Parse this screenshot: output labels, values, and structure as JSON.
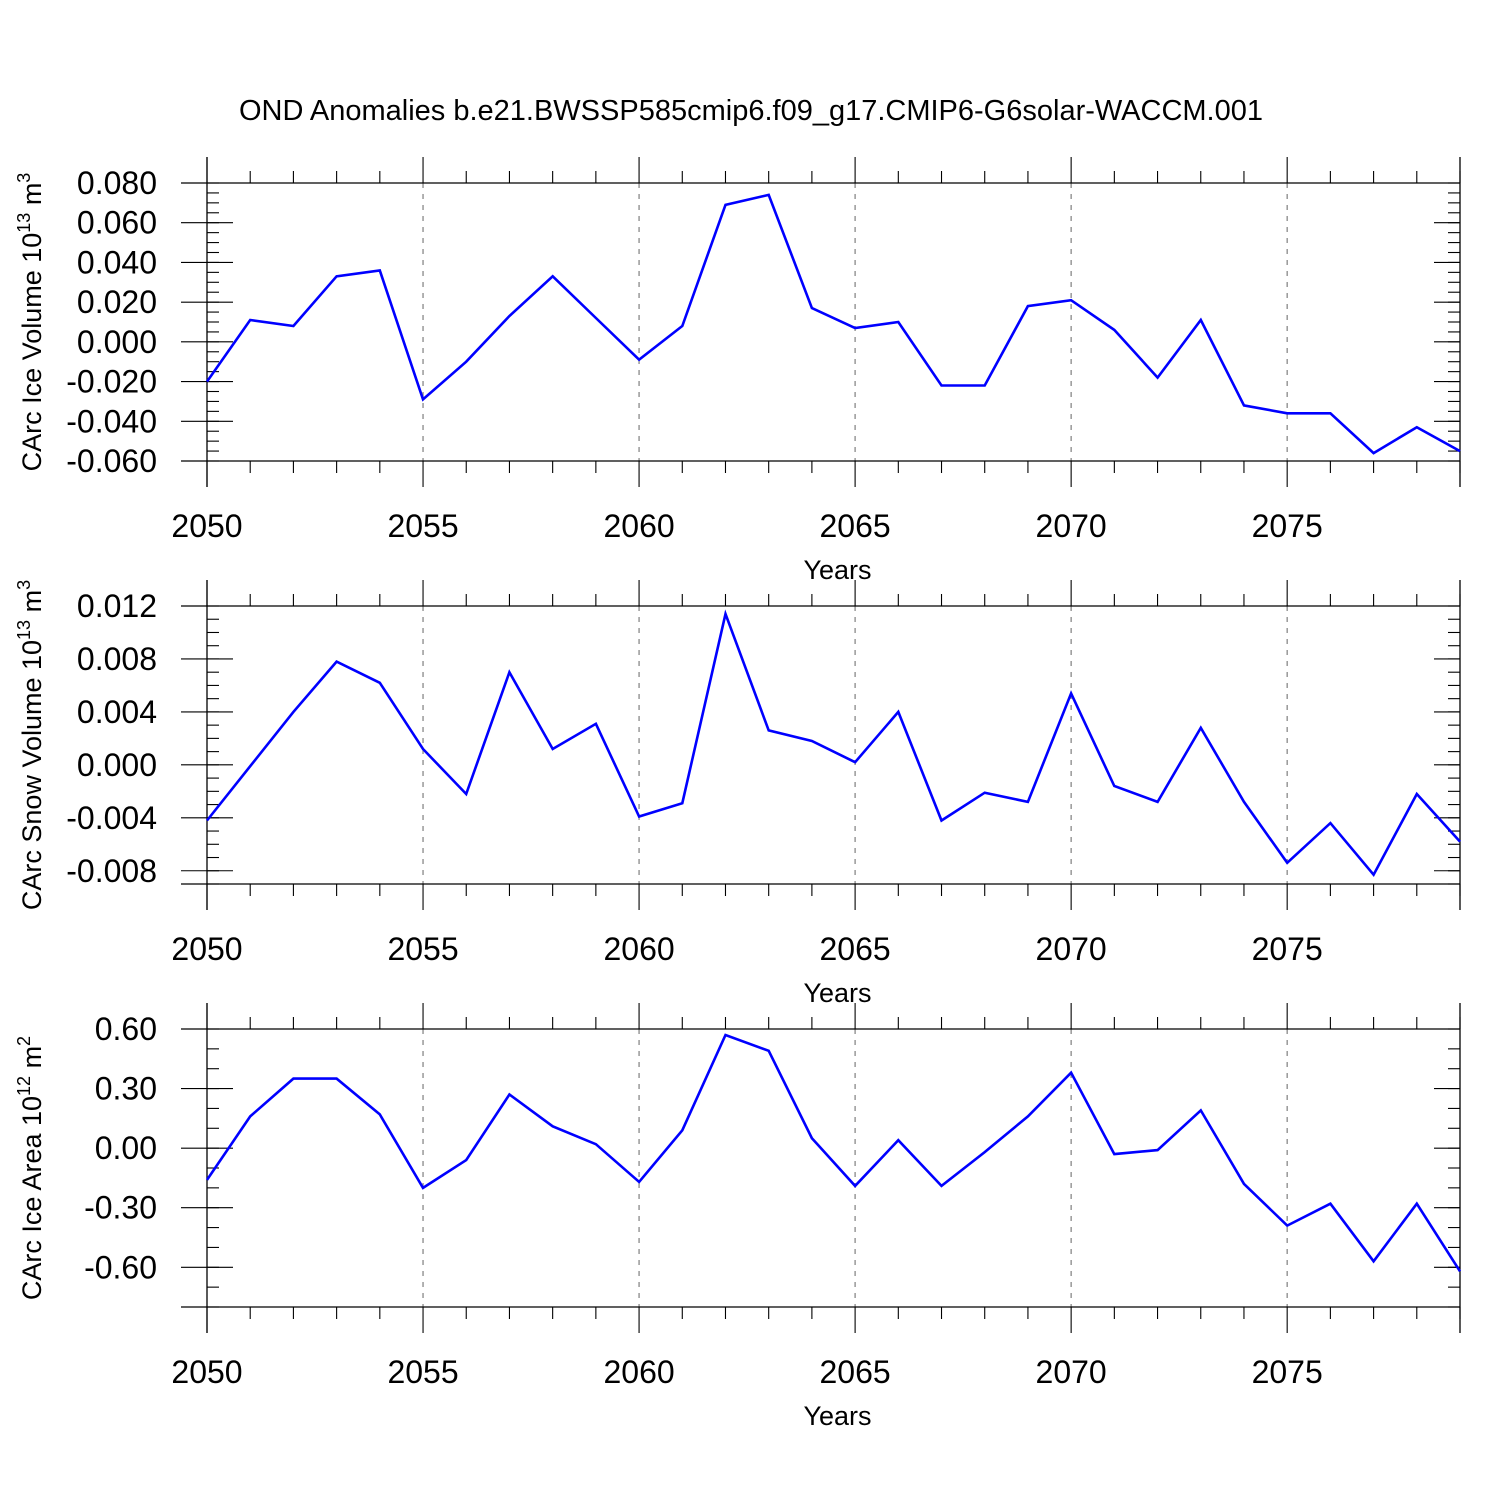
{
  "title": "OND Anomalies b.e21.BWSSP585cmip6.f09_g17.CMIP6-G6solar-WACCM.001",
  "chart_data": [
    {
      "type": "line",
      "ylabel_main": "CArc Ice Volume 10",
      "ylabel_exp": "13",
      "ylabel_unit": " m",
      "ylabel_unit_exp": "3",
      "xlabel": "Years",
      "xlim": [
        2050,
        2079
      ],
      "ylim": [
        -0.06,
        0.08
      ],
      "yticks": [
        0.08,
        0.06,
        0.04,
        0.02,
        0.0,
        -0.02,
        -0.04,
        -0.06
      ],
      "yticklabels": [
        "0.080",
        "0.060",
        "0.040",
        "0.020",
        "0.000",
        "-0.020",
        "-0.040",
        "-0.060"
      ],
      "ytick_minor_step": 0.005,
      "xticks": [
        2050,
        2055,
        2060,
        2065,
        2070,
        2075
      ],
      "xticklabels": [
        "2050",
        "2055",
        "2060",
        "2065",
        "2070",
        "2075"
      ],
      "x": [
        2050,
        2051,
        2052,
        2053,
        2054,
        2055,
        2056,
        2057,
        2058,
        2059,
        2060,
        2061,
        2062,
        2063,
        2064,
        2065,
        2066,
        2067,
        2068,
        2069,
        2070,
        2071,
        2072,
        2073,
        2074,
        2075,
        2076,
        2077,
        2078,
        2079
      ],
      "values": [
        -0.02,
        0.011,
        0.008,
        0.033,
        0.036,
        -0.029,
        -0.01,
        0.013,
        0.033,
        0.012,
        -0.009,
        0.008,
        0.069,
        0.074,
        0.017,
        0.007,
        0.01,
        -0.022,
        -0.022,
        0.018,
        0.021,
        0.006,
        -0.018,
        0.011,
        -0.032,
        -0.036,
        -0.036,
        -0.056,
        -0.043,
        -0.055
      ],
      "line_color": "#0000ff"
    },
    {
      "type": "line",
      "ylabel_main": "CArc Snow Volume 10",
      "ylabel_exp": "13",
      "ylabel_unit": " m",
      "ylabel_unit_exp": "3",
      "xlabel": "Years",
      "xlim": [
        2050,
        2079
      ],
      "ylim": [
        -0.009,
        0.012
      ],
      "yticks": [
        0.012,
        0.008,
        0.004,
        0.0,
        -0.004,
        -0.008
      ],
      "yticklabels": [
        "0.012",
        "0.008",
        "0.004",
        "0.000",
        "-0.004",
        "-0.008"
      ],
      "ytick_minor_step": 0.001,
      "xticks": [
        2050,
        2055,
        2060,
        2065,
        2070,
        2075
      ],
      "xticklabels": [
        "2050",
        "2055",
        "2060",
        "2065",
        "2070",
        "2075"
      ],
      "x": [
        2050,
        2051,
        2052,
        2053,
        2054,
        2055,
        2056,
        2057,
        2058,
        2059,
        2060,
        2061,
        2062,
        2063,
        2064,
        2065,
        2066,
        2067,
        2068,
        2069,
        2070,
        2071,
        2072,
        2073,
        2074,
        2075,
        2076,
        2077,
        2078,
        2079
      ],
      "values": [
        -0.0042,
        -0.0001,
        0.004,
        0.0078,
        0.0062,
        0.0012,
        -0.0022,
        0.007,
        0.0012,
        0.0031,
        -0.0039,
        -0.0029,
        0.0114,
        0.0026,
        0.0018,
        0.0002,
        0.004,
        -0.0042,
        -0.0021,
        -0.0028,
        0.0054,
        -0.0016,
        -0.0028,
        0.0028,
        -0.0028,
        -0.0074,
        -0.0044,
        -0.0083,
        -0.0022,
        -0.0058
      ],
      "line_color": "#0000ff"
    },
    {
      "type": "line",
      "ylabel_main": "CArc Ice Area 10",
      "ylabel_exp": "12",
      "ylabel_unit": " m",
      "ylabel_unit_exp": "2",
      "xlabel": "Years",
      "xlim": [
        2050,
        2079
      ],
      "ylim": [
        -0.8,
        0.6
      ],
      "yticks": [
        0.6,
        0.3,
        0.0,
        -0.3,
        -0.6
      ],
      "yticklabels": [
        "0.60",
        "0.30",
        "0.00",
        "-0.30",
        "-0.60"
      ],
      "ytick_minor_step": 0.1,
      "xticks": [
        2050,
        2055,
        2060,
        2065,
        2070,
        2075
      ],
      "xticklabels": [
        "2050",
        "2055",
        "2060",
        "2065",
        "2070",
        "2075"
      ],
      "x": [
        2050,
        2051,
        2052,
        2053,
        2054,
        2055,
        2056,
        2057,
        2058,
        2059,
        2060,
        2061,
        2062,
        2063,
        2064,
        2065,
        2066,
        2067,
        2068,
        2069,
        2070,
        2071,
        2072,
        2073,
        2074,
        2075,
        2076,
        2077,
        2078,
        2079
      ],
      "values": [
        -0.16,
        0.16,
        0.35,
        0.35,
        0.17,
        -0.2,
        -0.06,
        0.27,
        0.11,
        0.02,
        -0.17,
        0.09,
        0.57,
        0.49,
        0.05,
        -0.19,
        0.04,
        -0.19,
        -0.02,
        0.16,
        0.38,
        -0.03,
        -0.01,
        0.19,
        -0.18,
        -0.39,
        -0.28,
        -0.57,
        -0.28,
        -0.62
      ],
      "line_color": "#0000ff"
    }
  ]
}
